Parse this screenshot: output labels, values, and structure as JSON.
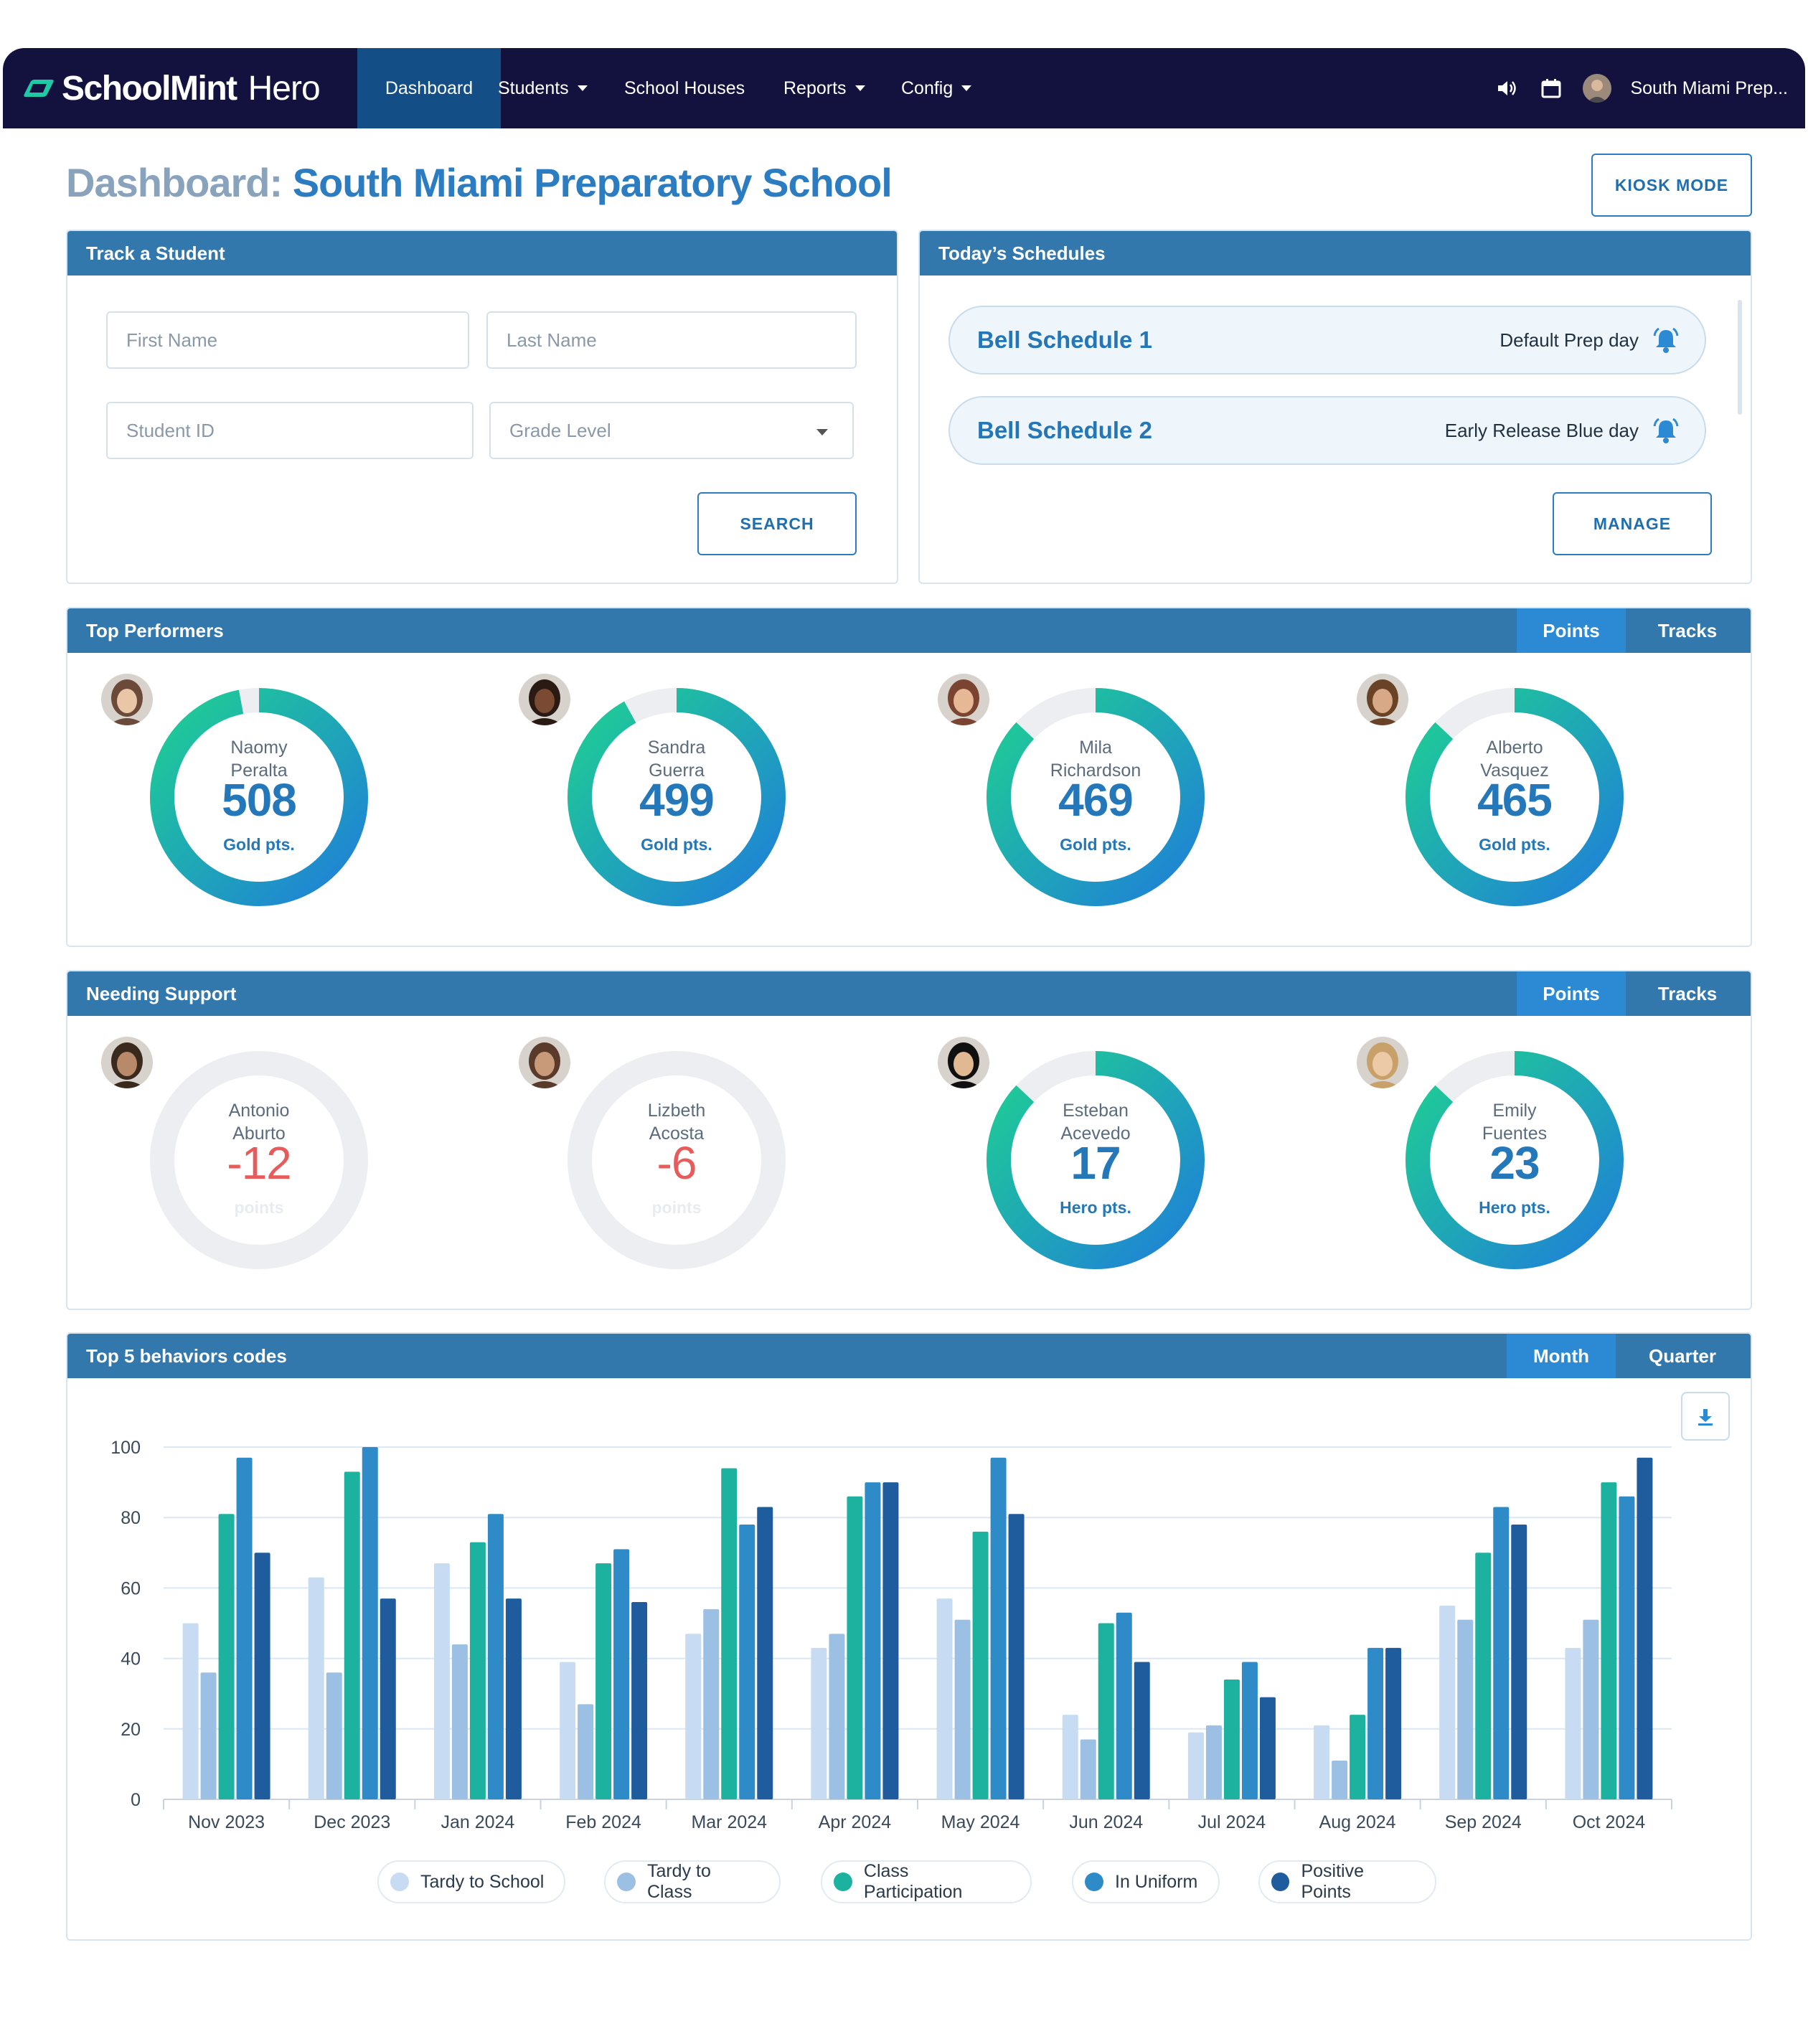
{
  "navbar": {
    "brand_name": "SchoolMint",
    "brand_sub": "Hero",
    "items": [
      {
        "label": "Dashboard"
      },
      {
        "label": "Students"
      },
      {
        "label": "School Houses"
      },
      {
        "label": "Reports"
      },
      {
        "label": "Config"
      }
    ],
    "user_school": "South Miami Prep...",
    "icons": {
      "sound": "speaker-icon",
      "calendar": "calendar-icon"
    }
  },
  "header": {
    "title_lead": "Dashboard:",
    "title_school": "South Miami Preparatory School",
    "kiosk_label": "KIOSK MODE"
  },
  "track": {
    "title": "Track a Student",
    "first_name_placeholder": "First Name",
    "last_name_placeholder": "Last Name",
    "student_id_placeholder": "Student ID",
    "grade_level_placeholder": "Grade Level",
    "search_label": "SEARCH"
  },
  "schedules": {
    "title": "Today’s Schedules",
    "items": [
      {
        "name": "Bell Schedule 1",
        "desc": "Default Prep day"
      },
      {
        "name": "Bell Schedule 2",
        "desc": "Early Release Blue day"
      }
    ],
    "manage_label": "MANAGE"
  },
  "top_performers": {
    "title": "Top Performers",
    "toggle": [
      "Points",
      "Tracks"
    ],
    "students": [
      {
        "first": "Naomy",
        "last": "Peralta",
        "value": "508",
        "unit": "Gold pts.",
        "fraction": 0.97
      },
      {
        "first": "Sandra",
        "last": "Guerra",
        "value": "499",
        "unit": "Gold pts.",
        "fraction": 0.92
      },
      {
        "first": "Mila",
        "last": "Richardson",
        "value": "469",
        "unit": "Gold pts.",
        "fraction": 0.87
      },
      {
        "first": "Alberto",
        "last": "Vasquez",
        "value": "465",
        "unit": "Gold pts.",
        "fraction": 0.87
      }
    ]
  },
  "needing_support": {
    "title": "Needing Support",
    "toggle": [
      "Points",
      "Tracks"
    ],
    "students": [
      {
        "first": "Antonio",
        "last": "Aburto",
        "value": "-12",
        "unit": "points",
        "fraction": 0
      },
      {
        "first": "Lizbeth",
        "last": "Acosta",
        "value": "-6",
        "unit": "points",
        "fraction": 0
      },
      {
        "first": "Esteban",
        "last": "Acevedo",
        "value": "17",
        "unit": "Hero pts.",
        "fraction": 0.87
      },
      {
        "first": "Emily",
        "last": "Fuentes",
        "value": "23",
        "unit": "Hero pts.",
        "fraction": 0.87
      }
    ]
  },
  "behaviors": {
    "title": "Top 5 behaviors codes",
    "toggle": [
      "Month",
      "Quarter"
    ],
    "download_icon": "download-icon"
  },
  "chart_data": {
    "type": "bar",
    "title": "Top 5 behaviors codes",
    "xlabel": "",
    "ylabel": "",
    "ylim": [
      0,
      100
    ],
    "yticks": [
      0,
      20,
      40,
      60,
      80,
      100
    ],
    "grid": true,
    "legend_position": "bottom",
    "categories": [
      "Nov 2023",
      "Dec 2023",
      "Jan 2024",
      "Feb 2024",
      "Mar 2024",
      "Apr 2024",
      "May 2024",
      "Jun 2024",
      "Jul 2024",
      "Aug 2024",
      "Sep 2024",
      "Oct 2024"
    ],
    "series": [
      {
        "name": "Tardy to School",
        "color": "#c7dcf2",
        "values": [
          50,
          63,
          67,
          39,
          47,
          43,
          57,
          24,
          19,
          21,
          55,
          43
        ]
      },
      {
        "name": "Tardy to Class",
        "color": "#9cc0e3",
        "values": [
          36,
          36,
          44,
          27,
          54,
          47,
          51,
          17,
          21,
          11,
          51,
          51
        ]
      },
      {
        "name": "Class Participation",
        "color": "#1db2a0",
        "values": [
          81,
          93,
          73,
          67,
          94,
          86,
          76,
          50,
          34,
          24,
          70,
          90
        ]
      },
      {
        "name": "In Uniform",
        "color": "#2f8bc8",
        "values": [
          97,
          100,
          81,
          71,
          78,
          90,
          97,
          53,
          39,
          43,
          83,
          86
        ]
      },
      {
        "name": "Positive Points",
        "color": "#1e5c9e",
        "values": [
          70,
          57,
          57,
          56,
          83,
          90,
          81,
          39,
          29,
          43,
          78,
          97
        ]
      }
    ]
  }
}
